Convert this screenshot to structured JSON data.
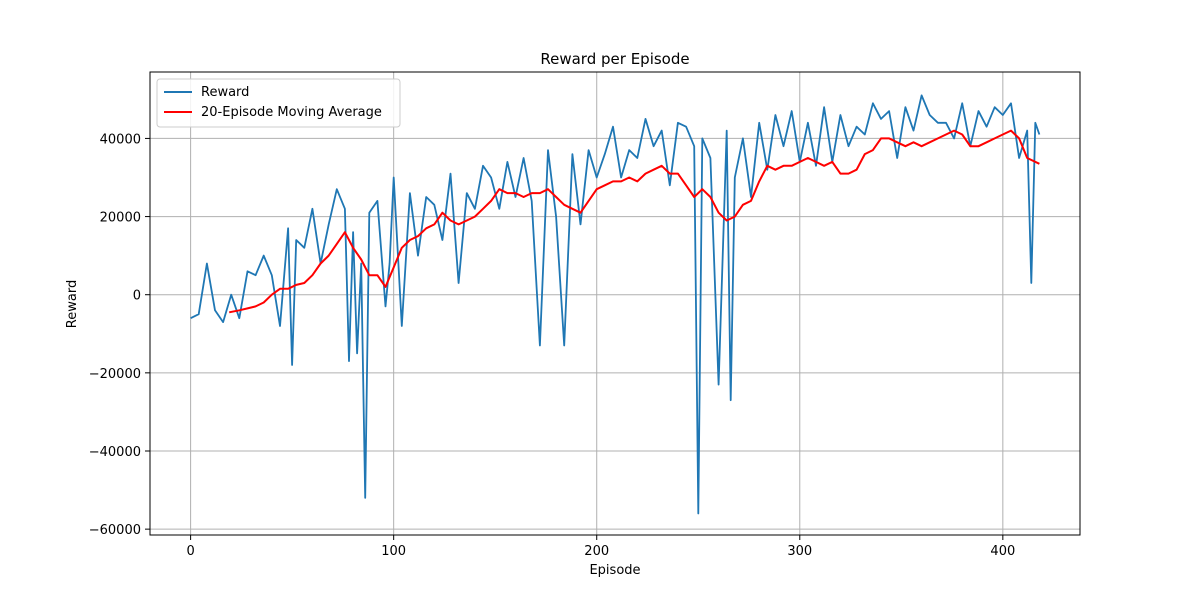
{
  "chart_data": {
    "type": "line",
    "title": "Reward per Episode",
    "xlabel": "Episode",
    "ylabel": "Reward",
    "xlim": [
      -20,
      438
    ],
    "ylim": [
      -61500,
      57000
    ],
    "xticks": [
      0,
      100,
      200,
      300,
      400
    ],
    "yticks": [
      -60000,
      -40000,
      -20000,
      0,
      20000,
      40000
    ],
    "xtick_labels": [
      "0",
      "100",
      "200",
      "300",
      "400"
    ],
    "ytick_labels": [
      "−60000",
      "−40000",
      "−20000",
      "0",
      "20000",
      "40000"
    ],
    "grid": true,
    "legend_position": "top-left",
    "series": [
      {
        "name": "Reward",
        "color": "#1f77b4",
        "x": [
          0,
          4,
          8,
          12,
          16,
          20,
          24,
          28,
          32,
          36,
          40,
          44,
          48,
          50,
          52,
          56,
          60,
          64,
          68,
          72,
          76,
          78,
          80,
          82,
          84,
          86,
          88,
          92,
          96,
          98,
          100,
          104,
          108,
          112,
          116,
          120,
          124,
          128,
          132,
          136,
          140,
          144,
          148,
          152,
          156,
          160,
          164,
          168,
          172,
          176,
          180,
          184,
          188,
          192,
          196,
          200,
          204,
          208,
          212,
          216,
          220,
          224,
          228,
          232,
          236,
          240,
          244,
          248,
          250,
          252,
          256,
          260,
          264,
          266,
          268,
          272,
          276,
          280,
          284,
          288,
          292,
          296,
          300,
          304,
          308,
          312,
          316,
          320,
          324,
          328,
          332,
          336,
          340,
          344,
          348,
          352,
          356,
          360,
          364,
          368,
          372,
          376,
          380,
          384,
          388,
          392,
          396,
          400,
          404,
          408,
          412,
          414,
          416,
          418
        ],
        "y": [
          -6000,
          -5000,
          8000,
          -4000,
          -7000,
          0,
          -6000,
          6000,
          5000,
          10000,
          5000,
          -8000,
          17000,
          -18000,
          14000,
          12000,
          22000,
          8000,
          18000,
          27000,
          22000,
          -17000,
          16000,
          -15000,
          8000,
          -52000,
          21000,
          24000,
          -3000,
          8000,
          30000,
          -8000,
          26000,
          10000,
          25000,
          23000,
          14000,
          31000,
          3000,
          26000,
          22000,
          33000,
          30000,
          22000,
          34000,
          25000,
          35000,
          24000,
          -13000,
          37000,
          20000,
          -13000,
          36000,
          18000,
          37000,
          30000,
          36000,
          43000,
          30000,
          37000,
          35000,
          45000,
          38000,
          42000,
          28000,
          44000,
          43000,
          38000,
          -56000,
          40000,
          35000,
          -23000,
          42000,
          -27000,
          30000,
          40000,
          25000,
          44000,
          32000,
          46000,
          38000,
          47000,
          34000,
          44000,
          33000,
          48000,
          34000,
          46000,
          38000,
          43000,
          41000,
          49000,
          45000,
          47000,
          35000,
          48000,
          42000,
          51000,
          46000,
          44000,
          44000,
          40000,
          49000,
          38000,
          47000,
          43000,
          48000,
          46000,
          49000,
          35000,
          42000,
          3000,
          44000,
          41000
        ]
      },
      {
        "name": "20-Episode Moving Average",
        "color": "#ff0000",
        "x": [
          19,
          24,
          28,
          32,
          36,
          40,
          44,
          48,
          52,
          56,
          60,
          64,
          68,
          72,
          76,
          80,
          84,
          88,
          92,
          96,
          100,
          104,
          108,
          112,
          116,
          120,
          124,
          128,
          132,
          136,
          140,
          144,
          148,
          152,
          156,
          160,
          164,
          168,
          172,
          176,
          180,
          184,
          188,
          192,
          196,
          200,
          204,
          208,
          212,
          216,
          220,
          224,
          228,
          232,
          236,
          240,
          244,
          248,
          252,
          256,
          260,
          264,
          268,
          272,
          276,
          280,
          284,
          288,
          292,
          296,
          300,
          304,
          308,
          312,
          316,
          320,
          324,
          328,
          332,
          336,
          340,
          344,
          348,
          352,
          356,
          360,
          364,
          368,
          372,
          376,
          380,
          384,
          388,
          392,
          396,
          400,
          404,
          408,
          412,
          418
        ],
        "y": [
          -4500,
          -4000,
          -3500,
          -3000,
          -2000,
          0,
          1500,
          1500,
          2500,
          3000,
          5000,
          8000,
          10000,
          13000,
          16000,
          12000,
          9000,
          5000,
          5000,
          2000,
          7000,
          12000,
          14000,
          15000,
          17000,
          18000,
          21000,
          19000,
          18000,
          19000,
          20000,
          22000,
          24000,
          27000,
          26000,
          26000,
          25000,
          26000,
          26000,
          27000,
          25000,
          23000,
          22000,
          21000,
          24000,
          27000,
          28000,
          29000,
          29000,
          30000,
          29000,
          31000,
          32000,
          33000,
          31000,
          31000,
          28000,
          25000,
          27000,
          25000,
          21000,
          19000,
          20000,
          23000,
          24000,
          29000,
          33000,
          32000,
          33000,
          33000,
          34000,
          35000,
          34000,
          33000,
          34000,
          31000,
          31000,
          32000,
          36000,
          37000,
          40000,
          40000,
          39000,
          38000,
          39000,
          38000,
          39000,
          40000,
          41000,
          42000,
          41000,
          38000,
          38000,
          39000,
          40000,
          41000,
          42000,
          40000,
          35000,
          33500
        ]
      }
    ]
  }
}
